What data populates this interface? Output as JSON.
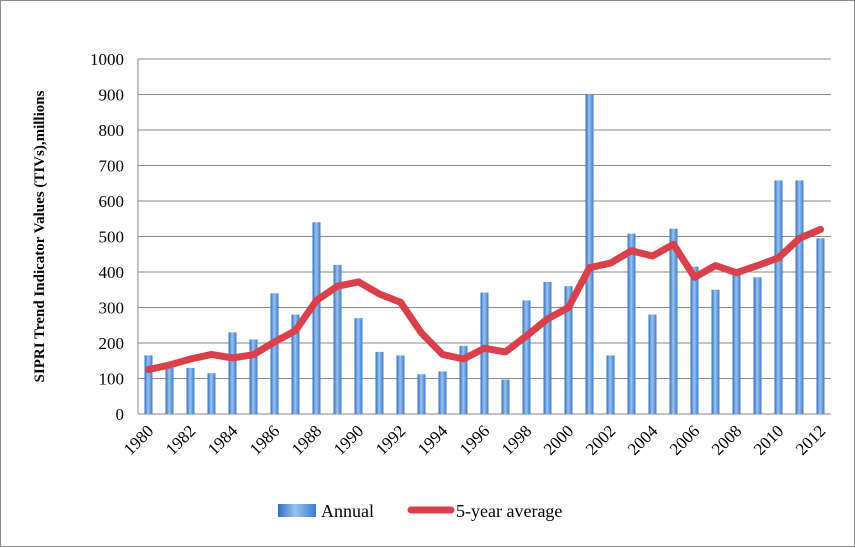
{
  "chart_data": {
    "type": "bar",
    "title": "",
    "xlabel": "",
    "ylabel": "SIPRI Trend Indicator Values (TIVs),millions",
    "ylim": [
      0,
      1000
    ],
    "yticks": [
      0,
      100,
      200,
      300,
      400,
      500,
      600,
      700,
      800,
      900,
      1000
    ],
    "grid": true,
    "legend_position": "bottom",
    "categories": [
      "1980",
      "1981",
      "1982",
      "1983",
      "1984",
      "1985",
      "1986",
      "1987",
      "1988",
      "1989",
      "1990",
      "1991",
      "1992",
      "1993",
      "1994",
      "1995",
      "1996",
      "1997",
      "1998",
      "1999",
      "2000",
      "2001",
      "2002",
      "2003",
      "2004",
      "2005",
      "2006",
      "2007",
      "2008",
      "2009",
      "2010",
      "2011",
      "2012"
    ],
    "x_tick_labels": [
      "1980",
      "1982",
      "1984",
      "1986",
      "1988",
      "1990",
      "1992",
      "1994",
      "1996",
      "1998",
      "2000",
      "2002",
      "2004",
      "2006",
      "2008",
      "2010",
      "2012"
    ],
    "series": [
      {
        "name": "Annual",
        "type": "bar",
        "color": "#4f8fd6",
        "values": [
          165,
          130,
          130,
          115,
          230,
          210,
          340,
          280,
          540,
          420,
          270,
          175,
          165,
          112,
          120,
          192,
          342,
          97,
          320,
          372,
          360,
          900,
          165,
          508,
          280,
          522,
          415,
          350,
          400,
          385,
          658,
          658,
          495
        ]
      },
      {
        "name": "5-year average",
        "type": "line",
        "color": "#d9404a",
        "values": [
          125,
          138,
          155,
          168,
          158,
          167,
          203,
          235,
          320,
          360,
          372,
          338,
          315,
          228,
          168,
          155,
          185,
          175,
          220,
          268,
          300,
          412,
          425,
          460,
          445,
          478,
          385,
          418,
          398,
          418,
          440,
          495,
          520
        ]
      }
    ]
  }
}
